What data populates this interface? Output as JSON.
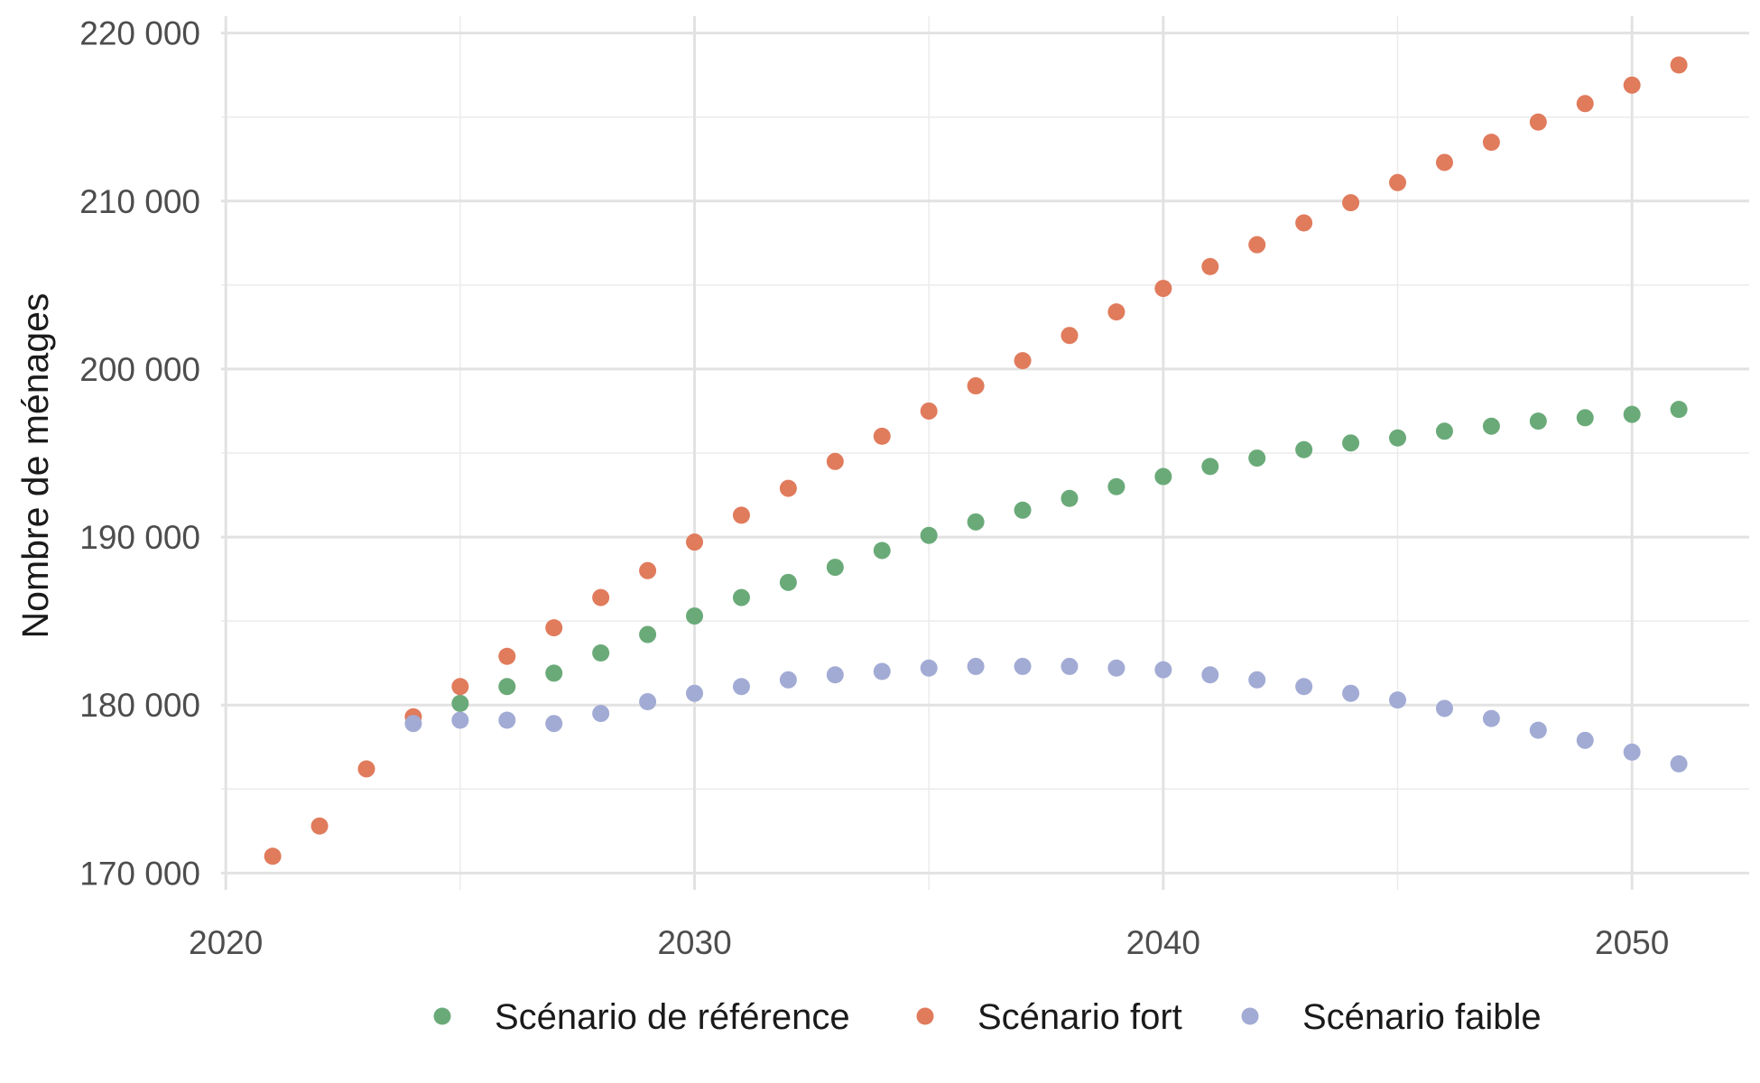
{
  "chart_data": {
    "type": "scatter",
    "ylabel": "Nombre de ménages",
    "xlabel": "",
    "xlim": [
      2019.9,
      2052.5
    ],
    "ylim": [
      169000,
      221000
    ],
    "x_ticks": [
      2020,
      2030,
      2040,
      2050
    ],
    "x_tick_labels": [
      "2020",
      "2030",
      "2040",
      "2050"
    ],
    "y_ticks": [
      170000,
      180000,
      190000,
      200000,
      210000,
      220000
    ],
    "y_tick_labels": [
      "170 000",
      "180 000",
      "190 000",
      "200 000",
      "210 000",
      "220 000"
    ],
    "grid": true,
    "legend_position": "bottom",
    "series": [
      {
        "name": "Scénario de référence",
        "color": "#6aaa78",
        "x": [
          2025,
          2026,
          2027,
          2028,
          2029,
          2030,
          2031,
          2032,
          2033,
          2034,
          2035,
          2036,
          2037,
          2038,
          2039,
          2040,
          2041,
          2042,
          2043,
          2044,
          2045,
          2046,
          2047,
          2048,
          2049,
          2050,
          2051
        ],
        "y": [
          180100,
          181100,
          181900,
          183100,
          184200,
          185300,
          186400,
          187300,
          188200,
          189200,
          190100,
          190900,
          191600,
          192300,
          193000,
          193600,
          194200,
          194700,
          195200,
          195600,
          195900,
          196300,
          196600,
          196900,
          197100,
          197300,
          197600
        ]
      },
      {
        "name": "Scénario fort",
        "color": "#e07b5c",
        "x": [
          2021,
          2022,
          2023,
          2024,
          2025,
          2026,
          2027,
          2028,
          2029,
          2030,
          2031,
          2032,
          2033,
          2034,
          2035,
          2036,
          2037,
          2038,
          2039,
          2040,
          2041,
          2042,
          2043,
          2044,
          2045,
          2046,
          2047,
          2048,
          2049,
          2050,
          2051
        ],
        "y": [
          171000,
          172800,
          176200,
          179300,
          181100,
          182900,
          184600,
          186400,
          188000,
          189700,
          191300,
          192900,
          194500,
          196000,
          197500,
          199000,
          200500,
          202000,
          203400,
          204800,
          206100,
          207400,
          208700,
          209900,
          211100,
          212300,
          213500,
          214700,
          215800,
          216900,
          218100
        ]
      },
      {
        "name": "Scénario faible",
        "color": "#a2abd4",
        "x": [
          2024,
          2025,
          2026,
          2027,
          2028,
          2029,
          2030,
          2031,
          2032,
          2033,
          2034,
          2035,
          2036,
          2037,
          2038,
          2039,
          2040,
          2041,
          2042,
          2043,
          2044,
          2045,
          2046,
          2047,
          2048,
          2049,
          2050,
          2051
        ],
        "y": [
          178900,
          179100,
          179100,
          178900,
          179500,
          180200,
          180700,
          181100,
          181500,
          181800,
          182000,
          182200,
          182300,
          182300,
          182300,
          182200,
          182100,
          181800,
          181500,
          181100,
          180700,
          180300,
          179800,
          179200,
          178500,
          177900,
          177200,
          176500
        ]
      }
    ]
  }
}
